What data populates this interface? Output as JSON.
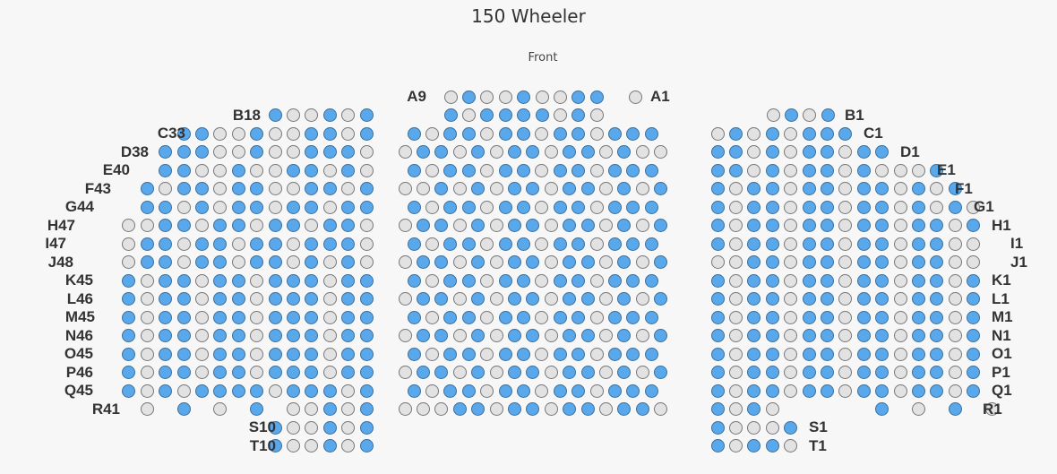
{
  "title": "150 Wheeler",
  "stage_label": "Front",
  "colors": {
    "available": "#5aa8ec",
    "unavailable": "#e2e2e2",
    "background": "#f7f7f7"
  },
  "legend": {
    "available_seat": "blue",
    "unavailable_seat": "grey"
  },
  "row_labels": {
    "left": [
      "B18",
      "C33",
      "D38",
      "E40",
      "F43",
      "G44",
      "H47",
      "I47",
      "J48",
      "K45",
      "L46",
      "M45",
      "N46",
      "O45",
      "P46",
      "Q45",
      "R41",
      "S10",
      "T10"
    ],
    "center": [
      "A9"
    ],
    "right": [
      "A1",
      "B1",
      "C1",
      "D1",
      "E1",
      "F1",
      "G1",
      "H1",
      "I1",
      "J1",
      "K1",
      "L1",
      "M1",
      "N1",
      "O1",
      "P1",
      "Q1",
      "R1",
      "S1",
      "T1"
    ]
  },
  "sections": {
    "left": {
      "B": "xooxox",
      "C": "xxooxooxxox",
      "D": "xxxooxooxxxo",
      "E": "xxooxooxxoxo",
      "F": "xoxxoxxooxxox",
      "G": "xxoxoxxoxxoxx",
      "H": "ooxxoxxoxxoxxo",
      "I": "oxxoxxoxxoxxxo",
      "J": "oxxoxxoxxoxoxo",
      "K": "xoxxoxxoxxxoxx",
      "L": "xoxxoxxoxxxoxx",
      "M": "xoxxoxxoxxxoxx",
      "N": "xoxxoxxoxxxoxx",
      "O": "xoxxoxxoxxxoxx",
      "P": "xoxxoxxoxxxoxx",
      "Q": "xoxoxxxxoxxxox",
      "R": "o?x?o?x?ooxox",
      "S": "xooxox",
      "T": "xooxox"
    },
    "center": {
      "A": "oxooxooxx",
      "B": "xoxxxxoxo",
      "C": "xoxxoxxoxxoxxx",
      "D": "oxxoxoxxoxxoxoo",
      "E": "xoxxoxxoxxoxxx",
      "F": "ooxoxoxxoxxoxox",
      "G": "xoxxoxxoxxoxxx",
      "H": "oxxoxoxxoxxoxox",
      "I": "xoxxoxxoxxoxxx",
      "J": "oxxoxoxxoxxoxox",
      "K": "xoxxoxxoxxoxxx",
      "L": "oxxoxoxxoxxoxox",
      "M": "xoxxoxxoxxoxxx",
      "N": "oxxoxoxxoxxoxox",
      "O": "xoxxoxxoxxoxxx",
      "P": "oxxoxoxxoxxoxox",
      "Q": "xoxxoxxoxxoxxx",
      "R": "oooxxoxxoxxoxxo"
    },
    "right": {
      "A": "o",
      "B": "oxox",
      "C": "oxoxoxxx",
      "D": "xxoxoxxoxx",
      "E": "xxoxoxxoxooox",
      "F": "xoxxoxxoxxoxox",
      "G": "xoxxoxxoxxoxoxo",
      "H": "xoxxoxxoxxoxxox",
      "I": "xoxxoxxoxxoxxoo",
      "J": "ooxxoxxoxxoxxoo",
      "K": "xoxxoxxoxxoxxox",
      "L": "xoxxoxxoxxoxxox",
      "M": "xoxxoxxoxxoxxox",
      "N": "xoxxoxxoxxoxxox",
      "O": "xoxxoxxoxxoxxox",
      "P": "xoxxoxxoxxoxxox",
      "Q": "xoxxoxxoxxoxxox",
      "R": "xoxo?????x?o?x?o",
      "S": "xooox",
      "T": "xoxxo"
    }
  }
}
